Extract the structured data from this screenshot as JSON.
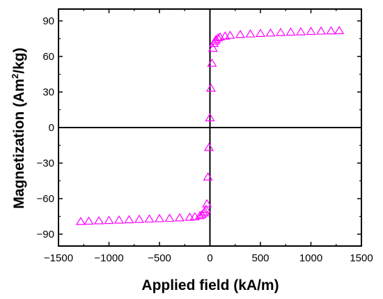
{
  "chart_data": {
    "type": "scatter",
    "title": "",
    "xlabel": "Applied field (kA/m)",
    "ylabel": {
      "pre": "Magnetization (Am",
      "sup": "2",
      "post": "/kg)"
    },
    "xlim": [
      -1500,
      1500
    ],
    "ylim": [
      -100,
      100
    ],
    "xticks": [
      -1500,
      -1000,
      -500,
      0,
      500,
      1000,
      1500
    ],
    "xtick_labels": [
      "−1500",
      "−1000",
      "−500",
      "0",
      "500",
      "1000",
      "1500"
    ],
    "yticks": [
      -90,
      -60,
      -30,
      0,
      30,
      60,
      90
    ],
    "ytick_labels": [
      "−90",
      "−60",
      "−30",
      "0",
      "30",
      "60",
      "90"
    ],
    "grid": false,
    "zero_lines": true,
    "marker": "open-triangle",
    "color": "#ff00ff",
    "series": [
      {
        "x": [
          -1280,
          -1200,
          -1100,
          -1000,
          -900,
          -800,
          -700,
          -600,
          -500,
          -400,
          -300,
          -200,
          -150,
          -100,
          -80,
          -60,
          -50,
          -40,
          -30,
          -20,
          -10,
          0,
          10,
          20,
          30,
          40,
          50,
          60,
          80,
          100,
          150,
          200,
          300,
          400,
          500,
          600,
          700,
          800,
          900,
          1000,
          1100,
          1200,
          1280
        ],
        "y": [
          -79.5,
          -79.2,
          -78.9,
          -78.6,
          -78.3,
          -78.0,
          -77.7,
          -77.4,
          -77.1,
          -76.8,
          -76.4,
          -75.9,
          -75.5,
          -74.6,
          -73.8,
          -72.4,
          -71.2,
          -69.2,
          -64.6,
          -42.0,
          -17.0,
          8.0,
          33.0,
          54.0,
          66.6,
          70.8,
          72.8,
          74.0,
          75.4,
          76.2,
          77.0,
          77.6,
          78.3,
          78.8,
          79.2,
          79.6,
          80.0,
          80.3,
          80.6,
          80.9,
          81.2,
          81.4,
          81.6
        ]
      }
    ]
  }
}
